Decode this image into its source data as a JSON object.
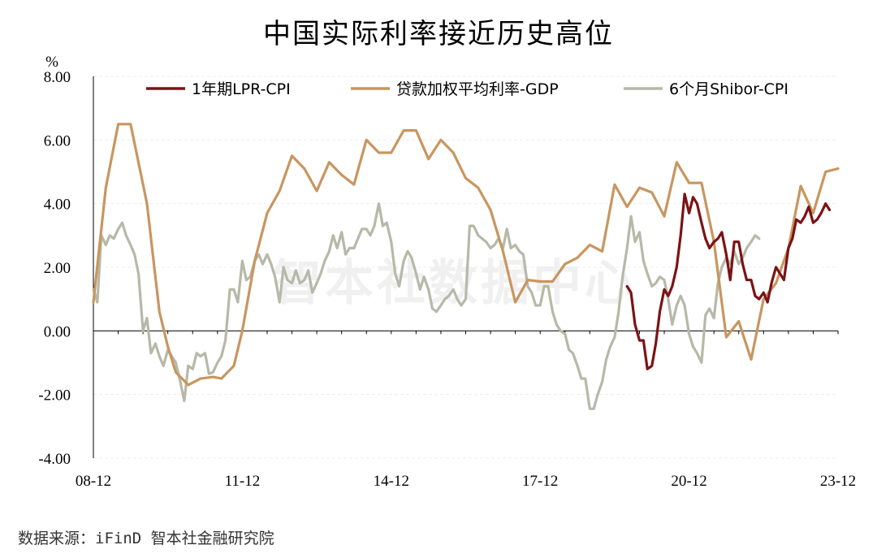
{
  "title": "中国实际利率接近历史高位",
  "watermark": "智本社数据中心",
  "source": "数据来源：iFinD 智本社金融研究院",
  "chart_data": {
    "type": "line",
    "ylabel": "%",
    "ylim": [
      -4,
      8
    ],
    "yticks": [
      "8.00",
      "6.00",
      "4.00",
      "2.00",
      "0.00",
      "-2.00",
      "-4.00"
    ],
    "ytick_values": [
      8,
      6,
      4,
      2,
      0,
      -2,
      -4
    ],
    "xlim": [
      2008.92,
      2023.92
    ],
    "xticks": [
      "08-12",
      "11-12",
      "14-12",
      "17-12",
      "20-12",
      "23-12"
    ],
    "xtick_values": [
      2008.92,
      2011.92,
      2014.92,
      2017.92,
      2020.92,
      2023.92
    ],
    "legend_position": "top",
    "grid": true,
    "series": [
      {
        "name": "1年期LPR-CPI",
        "color": "#7b1316",
        "points": [
          [
            2019.67,
            1.4
          ],
          [
            2019.75,
            1.2
          ],
          [
            2019.83,
            0.2
          ],
          [
            2019.92,
            -0.3
          ],
          [
            2020.0,
            -0.3
          ],
          [
            2020.08,
            -1.2
          ],
          [
            2020.17,
            -1.1
          ],
          [
            2020.25,
            -0.4
          ],
          [
            2020.33,
            0.6
          ],
          [
            2020.42,
            1.3
          ],
          [
            2020.5,
            1.1
          ],
          [
            2020.58,
            1.4
          ],
          [
            2020.67,
            2.0
          ],
          [
            2020.75,
            3.0
          ],
          [
            2020.83,
            4.3
          ],
          [
            2020.92,
            3.7
          ],
          [
            2021.0,
            4.2
          ],
          [
            2021.08,
            4.0
          ],
          [
            2021.17,
            3.4
          ],
          [
            2021.25,
            2.9
          ],
          [
            2021.33,
            2.6
          ],
          [
            2021.42,
            2.8
          ],
          [
            2021.5,
            2.9
          ],
          [
            2021.58,
            3.1
          ],
          [
            2021.67,
            2.4
          ],
          [
            2021.75,
            1.6
          ],
          [
            2021.83,
            2.8
          ],
          [
            2021.92,
            2.8
          ],
          [
            2022.0,
            2.1
          ],
          [
            2022.08,
            1.6
          ],
          [
            2022.17,
            1.6
          ],
          [
            2022.25,
            1.1
          ],
          [
            2022.33,
            1.0
          ],
          [
            2022.42,
            1.2
          ],
          [
            2022.5,
            0.9
          ],
          [
            2022.58,
            1.5
          ],
          [
            2022.67,
            2.0
          ],
          [
            2022.75,
            1.8
          ],
          [
            2022.83,
            1.6
          ],
          [
            2022.92,
            2.6
          ],
          [
            2023.0,
            2.9
          ],
          [
            2023.08,
            3.5
          ],
          [
            2023.17,
            3.4
          ],
          [
            2023.25,
            3.6
          ],
          [
            2023.33,
            3.9
          ],
          [
            2023.42,
            3.4
          ],
          [
            2023.5,
            3.5
          ],
          [
            2023.58,
            3.7
          ],
          [
            2023.67,
            4.0
          ],
          [
            2023.75,
            3.8
          ]
        ]
      },
      {
        "name": "贷款加权平均利率-GDP",
        "color": "#c8965f",
        "points": [
          [
            2008.92,
            0.9
          ],
          [
            2009.17,
            4.5
          ],
          [
            2009.42,
            6.5
          ],
          [
            2009.67,
            6.5
          ],
          [
            2010.0,
            4.0
          ],
          [
            2010.25,
            0.6
          ],
          [
            2010.42,
            -0.5
          ],
          [
            2010.58,
            -1.3
          ],
          [
            2010.83,
            -1.7
          ],
          [
            2011.08,
            -1.5
          ],
          [
            2011.33,
            -1.45
          ],
          [
            2011.5,
            -1.5
          ],
          [
            2011.75,
            -1.1
          ],
          [
            2011.92,
            0.0
          ],
          [
            2012.17,
            2.2
          ],
          [
            2012.42,
            3.7
          ],
          [
            2012.67,
            4.4
          ],
          [
            2012.92,
            5.5
          ],
          [
            2013.17,
            5.1
          ],
          [
            2013.42,
            4.4
          ],
          [
            2013.67,
            5.3
          ],
          [
            2013.92,
            4.9
          ],
          [
            2014.17,
            4.6
          ],
          [
            2014.42,
            6.0
          ],
          [
            2014.67,
            5.6
          ],
          [
            2014.92,
            5.6
          ],
          [
            2015.17,
            6.3
          ],
          [
            2015.42,
            6.3
          ],
          [
            2015.67,
            5.4
          ],
          [
            2015.92,
            6.0
          ],
          [
            2016.17,
            5.6
          ],
          [
            2016.42,
            4.8
          ],
          [
            2016.67,
            4.5
          ],
          [
            2016.92,
            3.8
          ],
          [
            2017.17,
            2.5
          ],
          [
            2017.42,
            0.9
          ],
          [
            2017.67,
            1.6
          ],
          [
            2017.92,
            1.55
          ],
          [
            2018.17,
            1.55
          ],
          [
            2018.42,
            2.1
          ],
          [
            2018.67,
            2.3
          ],
          [
            2018.92,
            2.7
          ],
          [
            2019.17,
            2.5
          ],
          [
            2019.42,
            4.6
          ],
          [
            2019.67,
            3.9
          ],
          [
            2019.92,
            4.5
          ],
          [
            2020.17,
            4.35
          ],
          [
            2020.42,
            3.6
          ],
          [
            2020.67,
            5.3
          ],
          [
            2020.92,
            4.65
          ],
          [
            2021.17,
            4.65
          ],
          [
            2021.42,
            2.8
          ],
          [
            2021.67,
            -0.2
          ],
          [
            2021.92,
            0.3
          ],
          [
            2022.17,
            -0.9
          ],
          [
            2022.42,
            1.0
          ],
          [
            2022.67,
            1.5
          ],
          [
            2022.92,
            2.6
          ],
          [
            2023.17,
            4.55
          ],
          [
            2023.42,
            3.7
          ],
          [
            2023.67,
            5.0
          ],
          [
            2023.92,
            5.1
          ]
        ]
      },
      {
        "name": "6个月Shibor-CPI",
        "color": "#b6b9a8",
        "points": [
          [
            2008.92,
            1.3
          ],
          [
            2009.0,
            0.9
          ],
          [
            2009.08,
            3.0
          ],
          [
            2009.17,
            2.7
          ],
          [
            2009.25,
            3.0
          ],
          [
            2009.33,
            2.9
          ],
          [
            2009.42,
            3.2
          ],
          [
            2009.5,
            3.4
          ],
          [
            2009.58,
            3.0
          ],
          [
            2009.67,
            2.7
          ],
          [
            2009.75,
            2.4
          ],
          [
            2009.83,
            1.8
          ],
          [
            2009.92,
            0.0
          ],
          [
            2010.0,
            0.4
          ],
          [
            2010.08,
            -0.7
          ],
          [
            2010.17,
            -0.4
          ],
          [
            2010.25,
            -0.8
          ],
          [
            2010.33,
            -1.1
          ],
          [
            2010.42,
            -0.6
          ],
          [
            2010.5,
            -0.8
          ],
          [
            2010.58,
            -1.0
          ],
          [
            2010.67,
            -1.6
          ],
          [
            2010.75,
            -2.2
          ],
          [
            2010.83,
            -1.1
          ],
          [
            2010.92,
            -1.2
          ],
          [
            2011.0,
            -0.7
          ],
          [
            2011.08,
            -0.8
          ],
          [
            2011.17,
            -0.7
          ],
          [
            2011.25,
            -1.35
          ],
          [
            2011.33,
            -1.3
          ],
          [
            2011.42,
            -1.0
          ],
          [
            2011.5,
            -0.8
          ],
          [
            2011.58,
            -0.3
          ],
          [
            2011.67,
            1.3
          ],
          [
            2011.75,
            1.3
          ],
          [
            2011.83,
            0.9
          ],
          [
            2011.92,
            2.2
          ],
          [
            2012.0,
            1.6
          ],
          [
            2012.08,
            1.7
          ],
          [
            2012.17,
            2.2
          ],
          [
            2012.25,
            2.4
          ],
          [
            2012.33,
            2.1
          ],
          [
            2012.42,
            2.4
          ],
          [
            2012.5,
            2.1
          ],
          [
            2012.58,
            1.7
          ],
          [
            2012.67,
            0.9
          ],
          [
            2012.75,
            2.0
          ],
          [
            2012.83,
            1.6
          ],
          [
            2012.92,
            1.5
          ],
          [
            2013.0,
            1.9
          ],
          [
            2013.08,
            1.5
          ],
          [
            2013.17,
            1.6
          ],
          [
            2013.25,
            1.9
          ],
          [
            2013.33,
            1.2
          ],
          [
            2013.42,
            1.5
          ],
          [
            2013.5,
            1.8
          ],
          [
            2013.58,
            2.2
          ],
          [
            2013.67,
            2.5
          ],
          [
            2013.75,
            3.0
          ],
          [
            2013.83,
            2.6
          ],
          [
            2013.92,
            3.1
          ],
          [
            2014.0,
            2.4
          ],
          [
            2014.08,
            2.6
          ],
          [
            2014.17,
            2.6
          ],
          [
            2014.25,
            2.9
          ],
          [
            2014.33,
            3.2
          ],
          [
            2014.42,
            3.2
          ],
          [
            2014.5,
            3.0
          ],
          [
            2014.58,
            3.3
          ],
          [
            2014.67,
            4.0
          ],
          [
            2014.75,
            3.3
          ],
          [
            2014.83,
            3.4
          ],
          [
            2014.92,
            2.8
          ],
          [
            2015.0,
            1.8
          ],
          [
            2015.08,
            1.4
          ],
          [
            2015.17,
            2.2
          ],
          [
            2015.25,
            2.5
          ],
          [
            2015.33,
            2.3
          ],
          [
            2015.42,
            1.8
          ],
          [
            2015.5,
            1.3
          ],
          [
            2015.58,
            1.7
          ],
          [
            2015.67,
            1.3
          ],
          [
            2015.75,
            0.7
          ],
          [
            2015.83,
            0.6
          ],
          [
            2015.92,
            0.8
          ],
          [
            2016.0,
            1.0
          ],
          [
            2016.08,
            1.1
          ],
          [
            2016.17,
            1.3
          ],
          [
            2016.25,
            1.0
          ],
          [
            2016.33,
            0.8
          ],
          [
            2016.42,
            1.0
          ],
          [
            2016.5,
            3.3
          ],
          [
            2016.58,
            3.3
          ],
          [
            2016.67,
            3.0
          ],
          [
            2016.75,
            2.9
          ],
          [
            2016.83,
            2.8
          ],
          [
            2016.92,
            2.6
          ],
          [
            2017.0,
            2.7
          ],
          [
            2017.08,
            2.9
          ],
          [
            2017.17,
            2.6
          ],
          [
            2017.25,
            3.2
          ],
          [
            2017.33,
            2.6
          ],
          [
            2017.42,
            2.7
          ],
          [
            2017.5,
            2.5
          ],
          [
            2017.58,
            2.4
          ],
          [
            2017.67,
            1.4
          ],
          [
            2017.75,
            1.2
          ],
          [
            2017.83,
            0.8
          ],
          [
            2017.92,
            0.8
          ],
          [
            2018.0,
            1.4
          ],
          [
            2018.08,
            1.4
          ],
          [
            2018.17,
            0.6
          ],
          [
            2018.25,
            0.2
          ],
          [
            2018.33,
            0.0
          ],
          [
            2018.42,
            -0.1
          ],
          [
            2018.5,
            -0.6
          ],
          [
            2018.58,
            -0.7
          ],
          [
            2018.67,
            -1.1
          ],
          [
            2018.75,
            -1.5
          ],
          [
            2018.83,
            -1.5
          ],
          [
            2018.92,
            -2.45
          ],
          [
            2019.0,
            -2.45
          ],
          [
            2019.08,
            -2.0
          ],
          [
            2019.17,
            -1.6
          ],
          [
            2019.25,
            -0.9
          ],
          [
            2019.33,
            -0.5
          ],
          [
            2019.42,
            -0.2
          ],
          [
            2019.5,
            0.6
          ],
          [
            2019.58,
            1.7
          ],
          [
            2019.67,
            2.6
          ],
          [
            2019.75,
            3.6
          ],
          [
            2019.83,
            2.8
          ],
          [
            2019.92,
            3.1
          ],
          [
            2020.0,
            2.2
          ],
          [
            2020.08,
            1.8
          ],
          [
            2020.17,
            1.4
          ],
          [
            2020.25,
            1.5
          ],
          [
            2020.33,
            1.7
          ],
          [
            2020.42,
            1.6
          ],
          [
            2020.5,
            1.0
          ],
          [
            2020.58,
            0.2
          ],
          [
            2020.67,
            0.8
          ],
          [
            2020.75,
            1.1
          ],
          [
            2020.83,
            0.8
          ],
          [
            2020.92,
            -0.1
          ],
          [
            2021.0,
            -0.5
          ],
          [
            2021.08,
            -0.7
          ],
          [
            2021.17,
            -1.0
          ],
          [
            2021.25,
            0.5
          ],
          [
            2021.33,
            0.7
          ],
          [
            2021.42,
            0.4
          ],
          [
            2021.5,
            1.5
          ],
          [
            2021.58,
            2.0
          ],
          [
            2021.67,
            2.3
          ],
          [
            2021.75,
            2.1
          ],
          [
            2021.83,
            2.5
          ],
          [
            2021.92,
            2.1
          ],
          [
            2022.0,
            2.3
          ],
          [
            2022.08,
            2.6
          ],
          [
            2022.17,
            2.8
          ],
          [
            2022.25,
            3.0
          ],
          [
            2022.33,
            2.9
          ]
        ]
      }
    ]
  }
}
